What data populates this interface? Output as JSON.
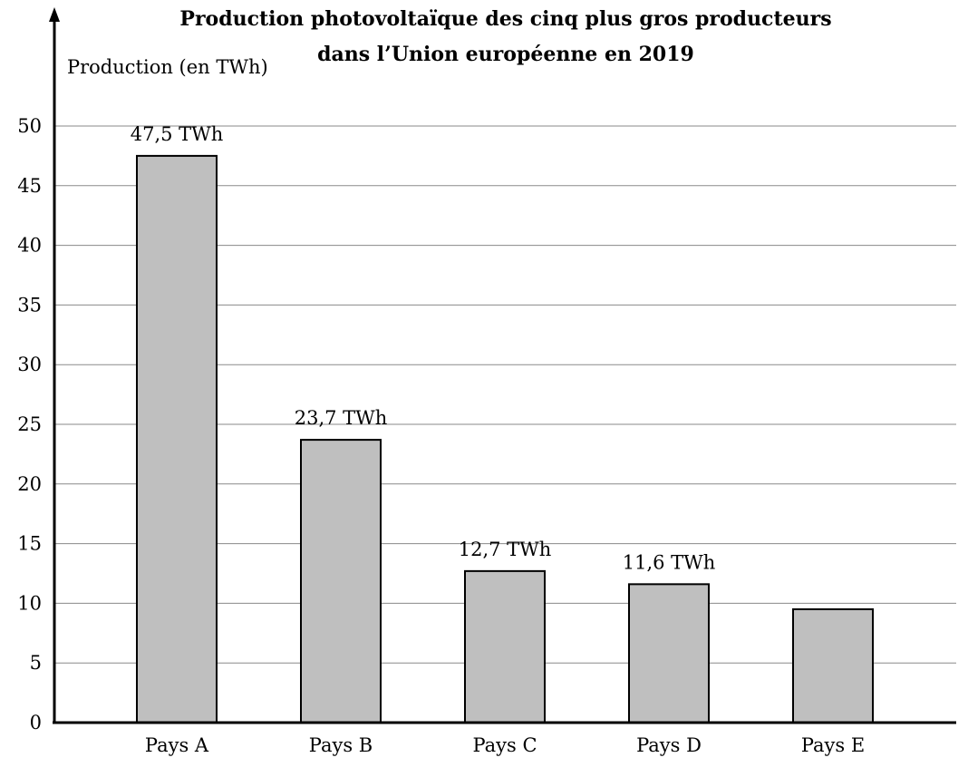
{
  "chart_data": {
    "type": "bar",
    "title_lines": [
      "Production photovoltaïque des cinq plus gros producteurs",
      "dans l’Union européenne en 2019"
    ],
    "ylabel": "Production (en TWh)",
    "xlabel": "",
    "categories": [
      "Pays A",
      "Pays B",
      "Pays C",
      "Pays D",
      "Pays E"
    ],
    "values": [
      47.5,
      23.7,
      12.7,
      11.6,
      9.5
    ],
    "data_labels": [
      "47,5 TWh",
      "23,7 TWh",
      "12,7 TWh",
      "11,6 TWh",
      ""
    ],
    "ylim": [
      0,
      50
    ],
    "yticks": [
      0,
      5,
      10,
      15,
      20,
      25,
      30,
      35,
      40,
      45,
      50
    ],
    "grid": true,
    "bar_color": "#bfbfbf"
  }
}
